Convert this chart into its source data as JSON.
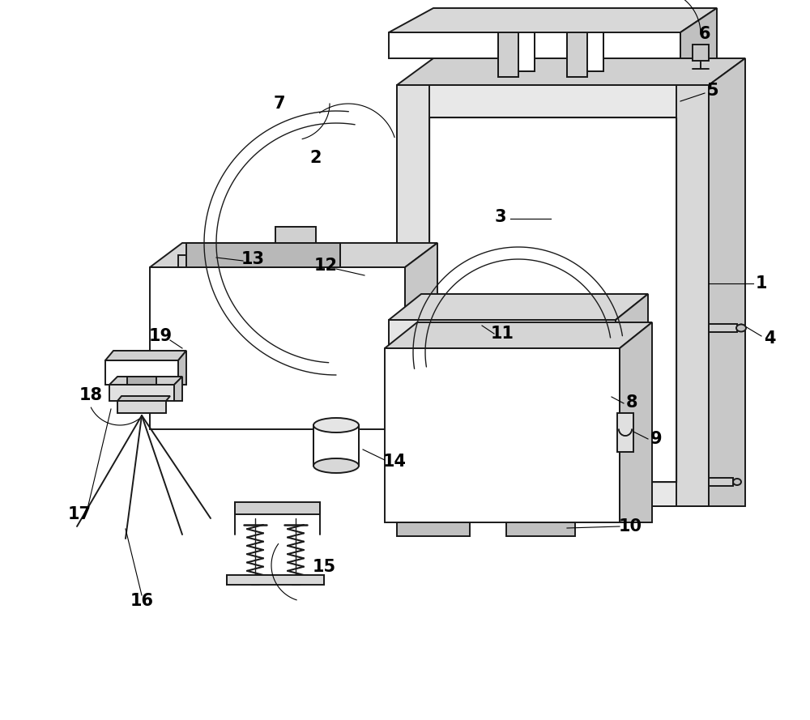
{
  "bg_color": "#ffffff",
  "lc": "#1a1a1a",
  "lw": 1.4,
  "lw_thin": 0.9,
  "lw_thick": 2.0
}
